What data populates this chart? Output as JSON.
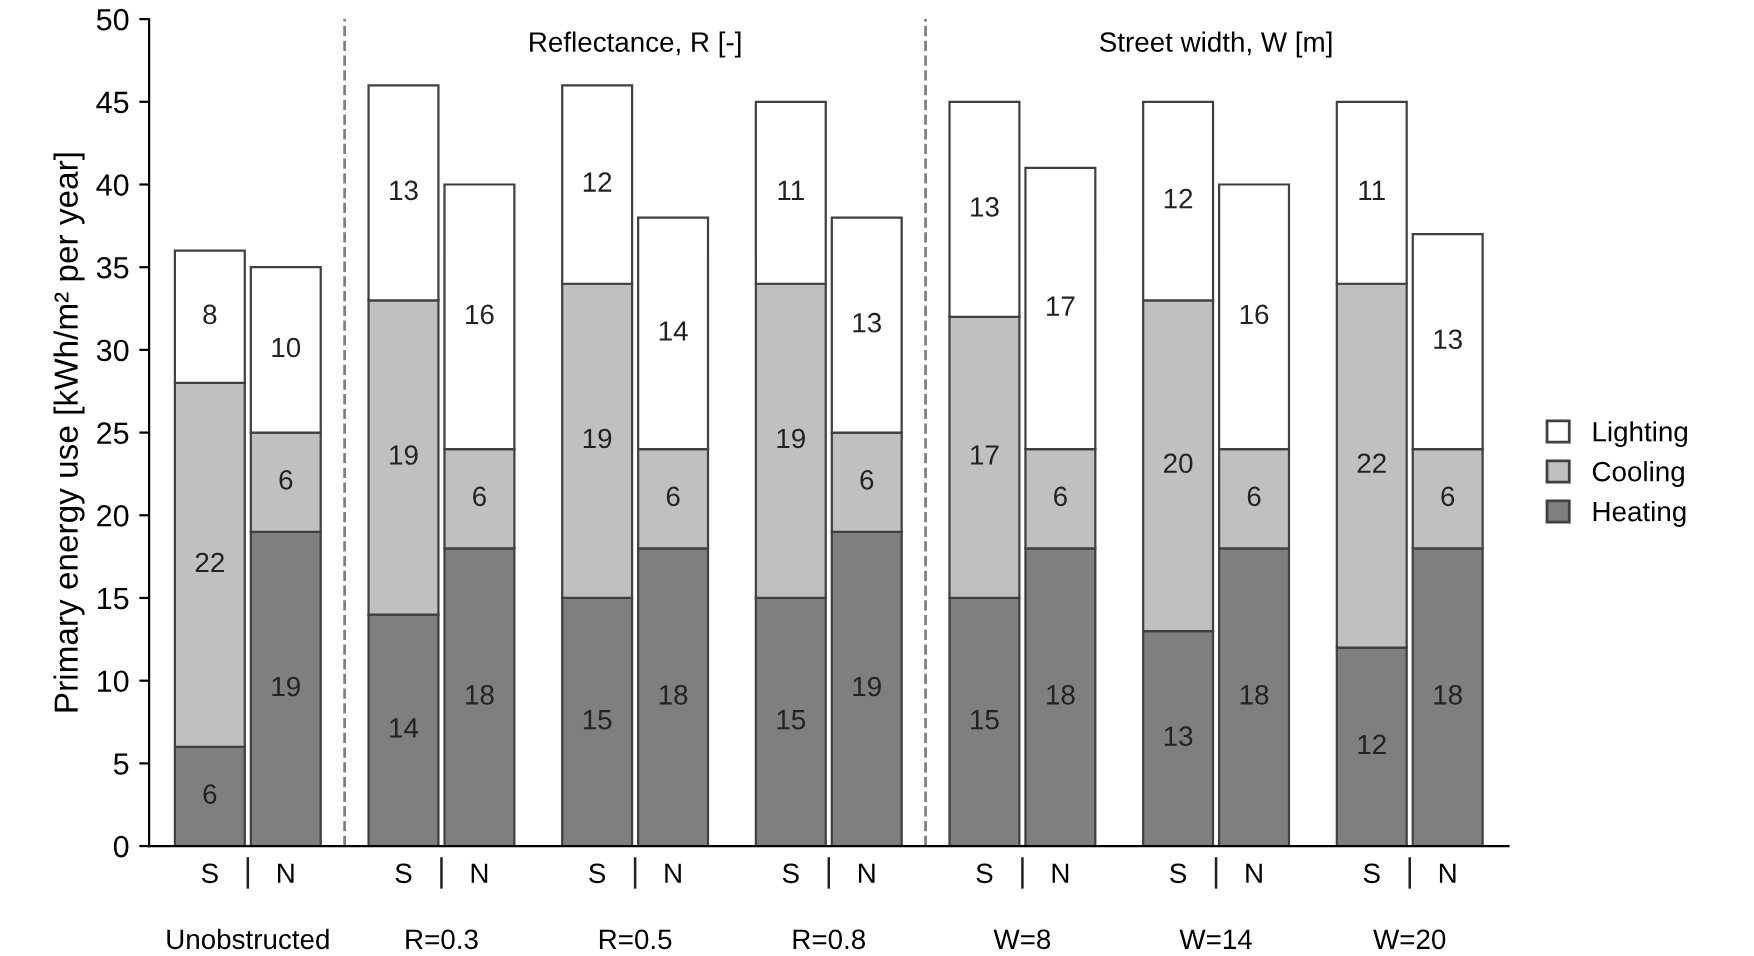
{
  "chart_data": {
    "type": "bar",
    "stacked": true,
    "data_labels": true,
    "ylabel": "Primary energy use [kWh/m² per year]",
    "categories": [
      "S",
      "N",
      "S",
      "N",
      "S",
      "N",
      "S",
      "N",
      "S",
      "N",
      "S",
      "N",
      "S",
      "N"
    ],
    "series": [
      {
        "name": "Heating",
        "color": "#7f7f7f",
        "values": [
          6,
          19,
          14,
          18,
          15,
          18,
          15,
          19,
          15,
          18,
          13,
          18,
          12,
          18
        ]
      },
      {
        "name": "Cooling",
        "color": "#c0c0c0",
        "values": [
          22,
          6,
          19,
          6,
          19,
          6,
          19,
          6,
          17,
          6,
          20,
          6,
          22,
          6
        ]
      },
      {
        "name": "Lighting",
        "color": "#ffffff",
        "values": [
          8,
          10,
          13,
          16,
          12,
          14,
          11,
          13,
          13,
          17,
          12,
          16,
          11,
          13
        ]
      }
    ],
    "ylim": [
      0,
      50
    ],
    "yticks": [
      0,
      5,
      10,
      15,
      20,
      25,
      30,
      35,
      40,
      45,
      50
    ],
    "grid": false,
    "legend": "right",
    "annotations": [
      "Unobstructed",
      "R=0.3",
      "R=0.5",
      "R=0.8",
      "W=8",
      "W=14",
      "W=20",
      "Reflectance, R [-]",
      "Street width, W [m]"
    ]
  }
}
